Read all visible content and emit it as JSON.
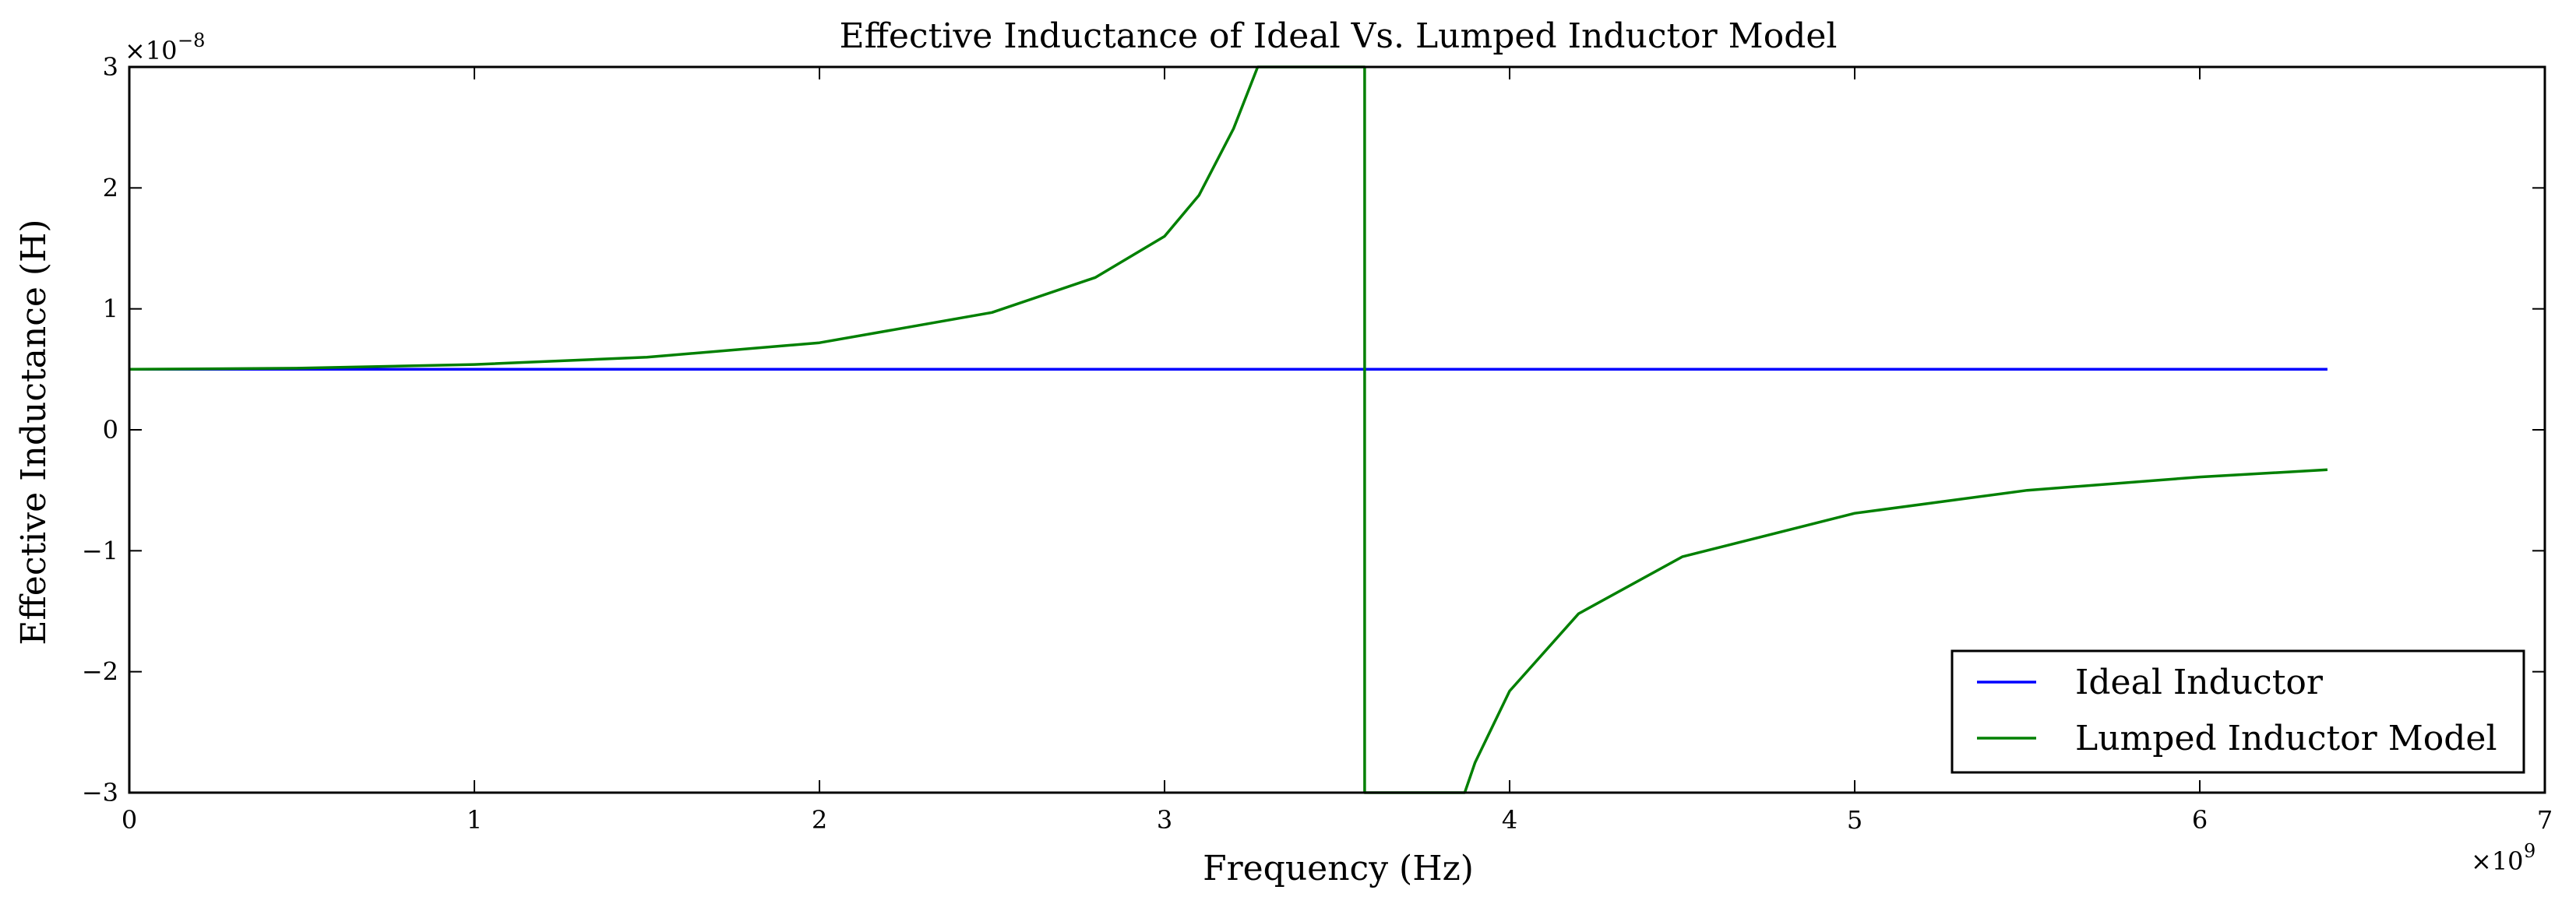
{
  "chart_data": {
    "type": "line",
    "title": "Effective Inductance of Ideal Vs. Lumped Inductor Model",
    "xlabel": "Frequency (Hz)",
    "ylabel": "Effective Inductance (H)",
    "x_scale_label": "×10",
    "x_scale_exp": "9",
    "y_scale_label": "×10",
    "y_scale_exp": "−8",
    "xlim": [
      0,
      7
    ],
    "ylim": [
      -3,
      3
    ],
    "x_ticks": [
      0,
      1,
      2,
      3,
      4,
      5,
      6,
      7
    ],
    "x_tick_labels": [
      "0",
      "1",
      "2",
      "3",
      "4",
      "5",
      "6",
      "7"
    ],
    "y_ticks": [
      -3,
      -2,
      -1,
      0,
      1,
      2,
      3
    ],
    "y_tick_labels": [
      "−3",
      "−2",
      "−1",
      "0",
      "1",
      "2",
      "3"
    ],
    "grid": false,
    "legend_position": "bottom-right",
    "series": [
      {
        "name": "Ideal Inductor",
        "color": "#0000ff",
        "x": [
          0,
          6.37
        ],
        "y": [
          0.5,
          0.5
        ]
      },
      {
        "name": "Lumped Inductor Model",
        "color": "#008000",
        "x": [
          0,
          0.5,
          1.0,
          1.5,
          2.0,
          2.5,
          2.8,
          3.0,
          3.1,
          3.2,
          3.27,
          3.58,
          3.58,
          3.87,
          3.9,
          4.0,
          4.2,
          4.5,
          5.0,
          5.5,
          6.0,
          6.37
        ],
        "y": [
          0.5,
          0.51,
          0.54,
          0.6,
          0.72,
          0.97,
          1.26,
          1.6,
          1.94,
          2.49,
          3.0,
          3.0,
          -3.0,
          -3.0,
          -2.75,
          -2.16,
          -1.52,
          -1.05,
          -0.69,
          -0.5,
          -0.39,
          -0.33
        ]
      }
    ]
  }
}
